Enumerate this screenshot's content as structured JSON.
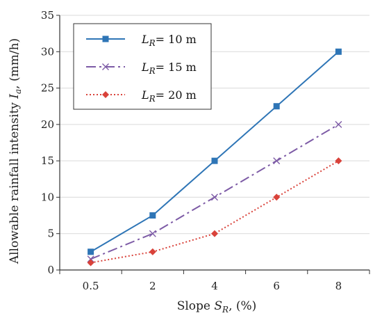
{
  "chart_data": {
    "type": "line",
    "categories": [
      "0.5",
      "2",
      "4",
      "6",
      "8"
    ],
    "xlabel": "Slope S_R, (%)",
    "xlabel_parts": {
      "prefix": "Slope ",
      "symbol": "S",
      "sub": "R",
      "suffix": ", (%)"
    },
    "ylabel": "Allowable rainfall intensity I_a, (mm/h)",
    "ylabel_parts": {
      "prefix": "Allowable rainfall intensity ",
      "symbol": "I",
      "sub": "a",
      "suffix": ", (mm/h)"
    },
    "ylim": [
      0,
      35
    ],
    "yticks": [
      0,
      5,
      10,
      15,
      20,
      25,
      30,
      35
    ],
    "grid": "horizontal",
    "legend_position": "top-left",
    "series": [
      {
        "name": "L_R = 10 m",
        "legend": {
          "symbol": "L",
          "sub": "R",
          "text": "= 10 m"
        },
        "values": [
          2.5,
          7.5,
          15,
          22.5,
          30
        ],
        "color": "#2e75b6",
        "line_style": "solid",
        "marker": "square"
      },
      {
        "name": "L_R = 15 m",
        "legend": {
          "symbol": "L",
          "sub": "R",
          "text": "= 15 m"
        },
        "values": [
          1.5,
          5,
          10,
          15,
          20
        ],
        "color": "#7d5ba6",
        "line_style": "dash-dot",
        "marker": "x"
      },
      {
        "name": "L_R = 20 m",
        "legend": {
          "symbol": "L",
          "sub": "R",
          "text": "= 20 m"
        },
        "values": [
          1,
          2.5,
          5,
          10,
          15
        ],
        "color": "#d9423a",
        "line_style": "dotted",
        "marker": "diamond"
      }
    ]
  }
}
